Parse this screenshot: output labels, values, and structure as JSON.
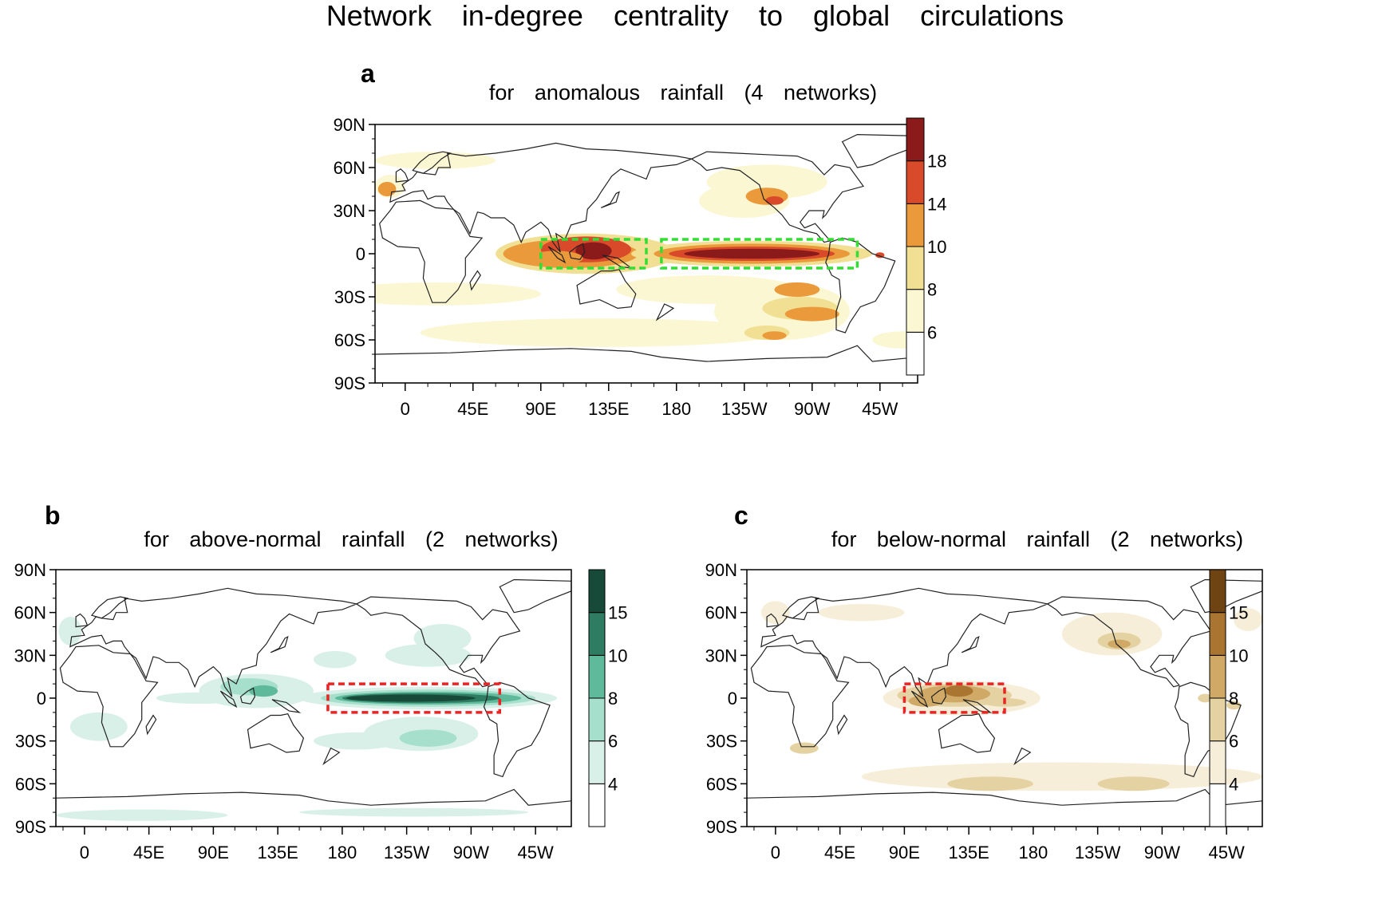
{
  "figure_title": "Network in-degree centrality to global circulations",
  "latitude_ticks": [
    "90N",
    "60N",
    "30N",
    "0",
    "30S",
    "60S",
    "90S"
  ],
  "longitude_ticks": [
    "0",
    "45E",
    "90E",
    "135E",
    "180",
    "135W",
    "90W",
    "45W"
  ],
  "panels": {
    "a": {
      "letter": "a",
      "title": "for anomalous rainfall (4 networks)",
      "colorbar_ticks": [
        "6",
        "8",
        "10",
        "14",
        "18"
      ],
      "colors": [
        "#ffffff",
        "#fbf7d3",
        "#f1df93",
        "#ea9a3a",
        "#d84a2a",
        "#8b1a1a"
      ],
      "box_color": "#33dd33",
      "boxes_lonlat": [
        [
          90,
          -10,
          160,
          10
        ],
        [
          170,
          -10,
          300,
          10
        ]
      ]
    },
    "b": {
      "letter": "b",
      "title": "for above-normal rainfall (2 networks)",
      "colorbar_ticks": [
        "4",
        "6",
        "8",
        "10",
        "15"
      ],
      "colors": [
        "#ffffff",
        "#d8f0e8",
        "#a6dfcc",
        "#5fb99b",
        "#2e7d62",
        "#184a3a"
      ],
      "box_color": "#ee2222",
      "boxes_lonlat": [
        [
          170,
          -10,
          290,
          10
        ]
      ]
    },
    "c": {
      "letter": "c",
      "title": "for below-normal rainfall (2 networks)",
      "colorbar_ticks": [
        "4",
        "6",
        "8",
        "10",
        "15"
      ],
      "colors": [
        "#ffffff",
        "#f6eed8",
        "#e5d2a2",
        "#cfa965",
        "#a97530",
        "#6e4512"
      ],
      "box_color": "#ee2222",
      "boxes_lonlat": [
        [
          90,
          -10,
          160,
          10
        ]
      ]
    }
  }
}
